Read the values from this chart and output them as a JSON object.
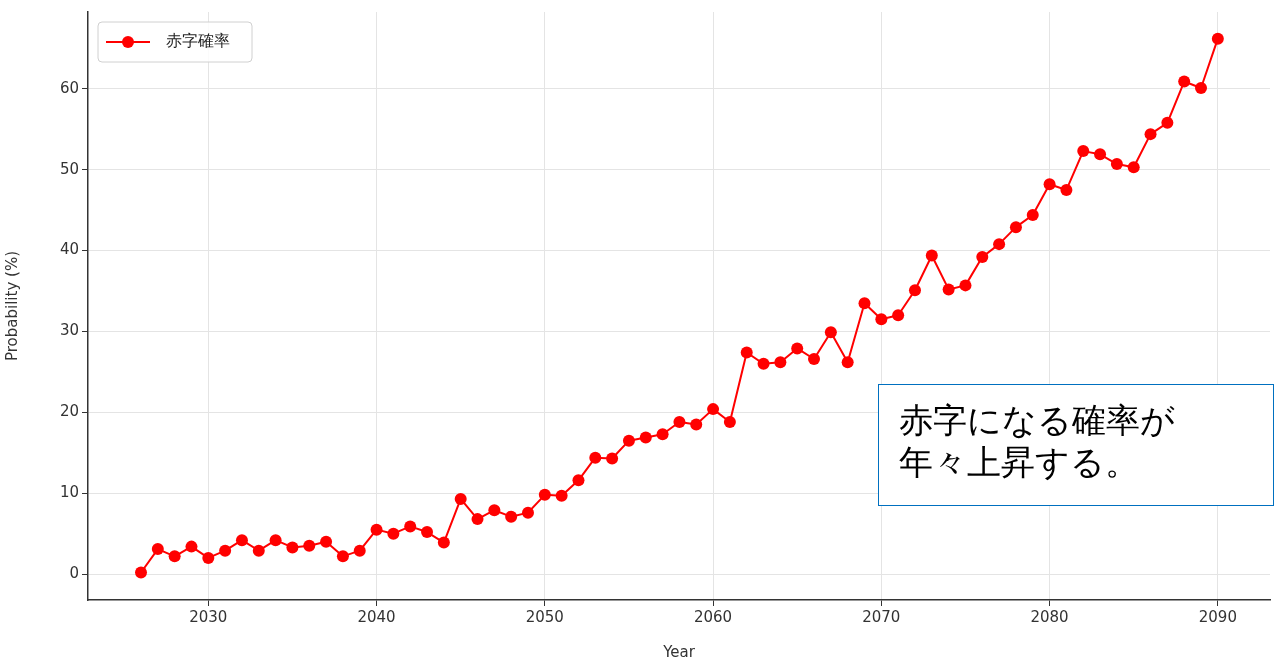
{
  "chart_data": {
    "type": "line",
    "xlabel": "Year",
    "ylabel": "Probability (%)",
    "x": [
      2026,
      2027,
      2028,
      2029,
      2030,
      2031,
      2032,
      2033,
      2034,
      2035,
      2036,
      2037,
      2038,
      2039,
      2040,
      2041,
      2042,
      2043,
      2044,
      2045,
      2046,
      2047,
      2048,
      2049,
      2050,
      2051,
      2052,
      2053,
      2054,
      2055,
      2056,
      2057,
      2058,
      2059,
      2060,
      2061,
      2062,
      2063,
      2064,
      2065,
      2066,
      2067,
      2068,
      2069,
      2070,
      2071,
      2072,
      2073,
      2074,
      2075,
      2076,
      2077,
      2078,
      2079,
      2080,
      2081,
      2082,
      2083,
      2084,
      2085,
      2086,
      2087,
      2088,
      2089,
      2090
    ],
    "series": [
      {
        "name": "赤字確率",
        "color": "#ff0000",
        "values": [
          0.2,
          3.1,
          2.2,
          3.4,
          2.0,
          2.9,
          4.2,
          2.9,
          4.2,
          3.3,
          3.5,
          4.0,
          2.2,
          2.9,
          5.5,
          5.0,
          5.9,
          5.2,
          3.9,
          9.3,
          6.8,
          7.9,
          7.1,
          7.6,
          9.8,
          9.7,
          11.6,
          14.4,
          14.3,
          16.5,
          16.9,
          17.3,
          18.8,
          18.5,
          20.4,
          18.8,
          27.4,
          26.0,
          26.2,
          27.9,
          26.6,
          29.9,
          26.2,
          33.5,
          31.5,
          32.0,
          35.1,
          39.4,
          35.2,
          35.7,
          39.2,
          40.8,
          42.9,
          44.4,
          48.2,
          47.5,
          52.3,
          51.9,
          50.7,
          50.3,
          54.4,
          55.8,
          60.9,
          60.1,
          66.2
        ]
      }
    ],
    "xlim": [
      2022.85,
      2093.1
    ],
    "ylim": [
      -3.2,
      69.5
    ],
    "xticks": [
      2030,
      2040,
      2050,
      2060,
      2070,
      2080,
      2090
    ],
    "yticks": [
      0,
      10,
      20,
      30,
      40,
      50,
      60
    ],
    "grid": true,
    "legend": "top left",
    "marker": "circle",
    "line_style": "solid",
    "annotations": [
      "赤字になる確率が年々上昇する。"
    ]
  }
}
